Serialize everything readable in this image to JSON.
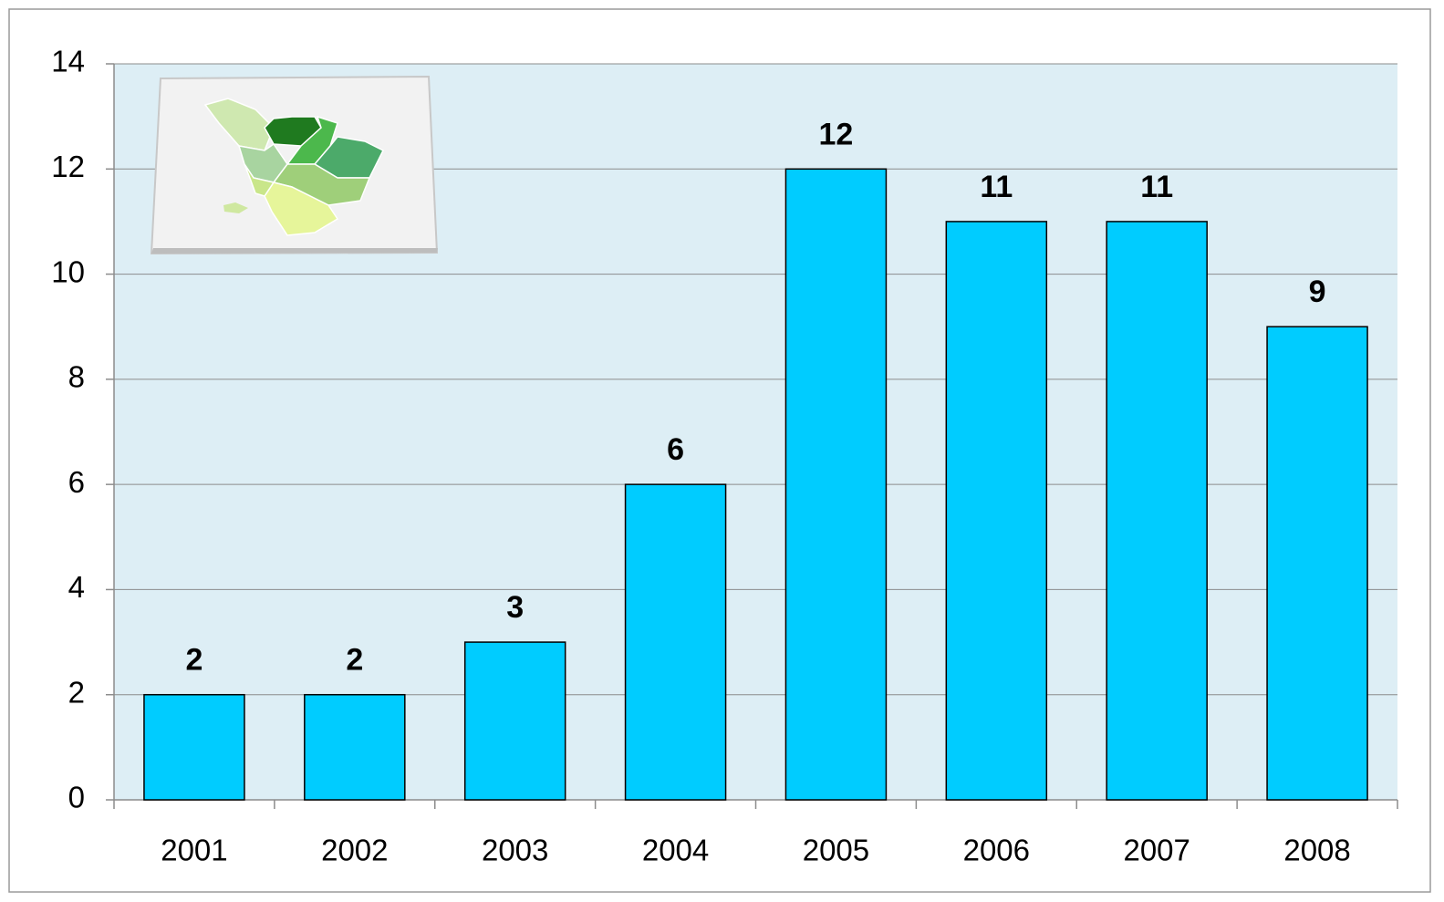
{
  "chart_data": {
    "type": "bar",
    "categories": [
      "2001",
      "2002",
      "2003",
      "2004",
      "2005",
      "2006",
      "2007",
      "2008"
    ],
    "values": [
      2,
      2,
      3,
      6,
      12,
      11,
      11,
      9
    ],
    "color": "#00ccff",
    "ylim": [
      0,
      14
    ],
    "yticks": [
      0,
      2,
      4,
      6,
      8,
      10,
      12,
      14
    ],
    "grid": true
  }
}
